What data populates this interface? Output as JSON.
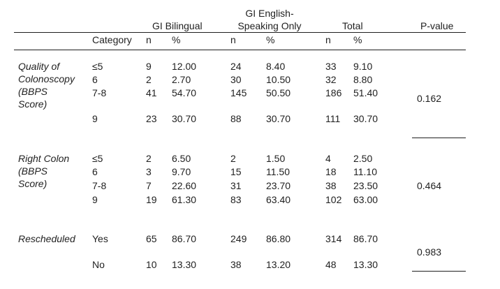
{
  "header": {
    "bilingual": "GI Bilingual",
    "english_line1": "GI English-",
    "english_line2": "Speaking Only",
    "total": "Total",
    "pvalue": "P-value",
    "category": "Category",
    "n": "n",
    "pct": "%"
  },
  "sections": [
    {
      "label": [
        "Quality of",
        "Colonoscopy",
        "(BBPS",
        "Score)"
      ],
      "pvalue": "0.162",
      "rows": [
        {
          "category": "≤5",
          "bil_n": "9",
          "bil_pct": "12.00",
          "eng_n": "24",
          "eng_pct": "8.40",
          "tot_n": "33",
          "tot_pct": "9.10"
        },
        {
          "category": "6",
          "bil_n": "2",
          "bil_pct": "2.70",
          "eng_n": "30",
          "eng_pct": "10.50",
          "tot_n": "32",
          "tot_pct": "8.80"
        },
        {
          "category": "7-8",
          "bil_n": "41",
          "bil_pct": "54.70",
          "eng_n": "145",
          "eng_pct": "50.50",
          "tot_n": "186",
          "tot_pct": "51.40"
        },
        {
          "category": "9",
          "bil_n": "23",
          "bil_pct": "30.70",
          "eng_n": "88",
          "eng_pct": "30.70",
          "tot_n": "111",
          "tot_pct": "30.70"
        }
      ]
    },
    {
      "label": [
        "Right Colon",
        "(BBPS",
        "Score)"
      ],
      "pvalue": "0.464",
      "rows": [
        {
          "category": "≤5",
          "bil_n": "2",
          "bil_pct": "6.50",
          "eng_n": "2",
          "eng_pct": "1.50",
          "tot_n": "4",
          "tot_pct": "2.50"
        },
        {
          "category": "6",
          "bil_n": "3",
          "bil_pct": "9.70",
          "eng_n": "15",
          "eng_pct": "11.50",
          "tot_n": "18",
          "tot_pct": "11.10"
        },
        {
          "category": "7-8",
          "bil_n": "7",
          "bil_pct": "22.60",
          "eng_n": "31",
          "eng_pct": "23.70",
          "tot_n": "38",
          "tot_pct": "23.50"
        },
        {
          "category": "9",
          "bil_n": "19",
          "bil_pct": "61.30",
          "eng_n": "83",
          "eng_pct": "63.40",
          "tot_n": "102",
          "tot_pct": "63.00"
        }
      ]
    },
    {
      "label": [
        "Rescheduled"
      ],
      "pvalue": "0.983",
      "rows": [
        {
          "category": "Yes",
          "bil_n": "65",
          "bil_pct": "86.70",
          "eng_n": "249",
          "eng_pct": "86.80",
          "tot_n": "314",
          "tot_pct": "86.70"
        },
        {
          "category": "No",
          "bil_n": "10",
          "bil_pct": "13.30",
          "eng_n": "38",
          "eng_pct": "13.20",
          "tot_n": "48",
          "tot_pct": "13.30"
        }
      ]
    }
  ]
}
